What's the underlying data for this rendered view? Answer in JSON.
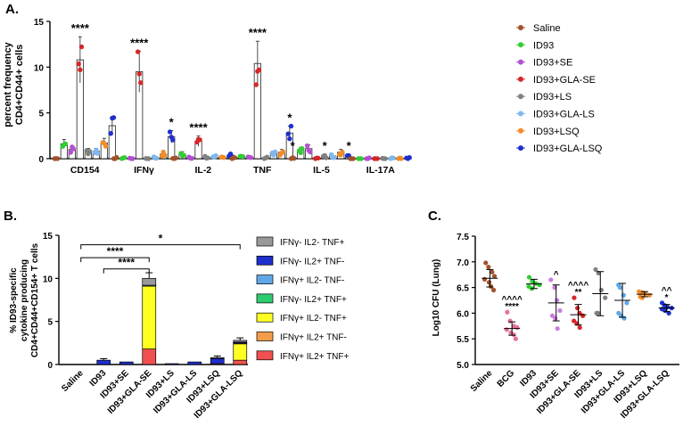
{
  "panels": {
    "a": {
      "label": "A.",
      "ylabel1": "percent frequency",
      "ylabel2": "CD4+CD44+ cells"
    },
    "b": {
      "label": "B.",
      "ylabel1": "% ID93-specific",
      "ylabel2": "cytokine producing",
      "ylabel3": "CD4+CD44+CD154+ T cells"
    },
    "c": {
      "label": "C.",
      "ylabel": "Log10 CFU (Lung)"
    }
  },
  "chart_data": [
    {
      "panel": "A",
      "type": "bar",
      "ylabel": "percent frequency CD4+CD44+ cells",
      "ylim": [
        0,
        15
      ],
      "yticks": [
        "0",
        "5",
        "10",
        "15"
      ],
      "categories": [
        "CD154",
        "IFNγ",
        "IL-2",
        "TNF",
        "IL-5",
        "IL-17A"
      ],
      "significance": [
        "****",
        "****",
        "****",
        "****",
        "*",
        ""
      ],
      "sig_extra": [
        {
          "category": "CD154",
          "series": "ID93+GLA-SE",
          "mark": "****"
        },
        {
          "category": "IFNγ",
          "series": "ID93+GLA-SE",
          "mark": "****"
        },
        {
          "category": "IFNγ",
          "series": "ID93+GLA-LSQ",
          "mark": "*"
        },
        {
          "category": "IL-2",
          "series": "ID93+GLA-SE",
          "mark": "****"
        },
        {
          "category": "TNF",
          "series": "ID93+GLA-SE",
          "mark": "****"
        },
        {
          "category": "TNF",
          "series": "ID93+GLA-LSQ",
          "mark": "*"
        },
        {
          "category": "IL-5",
          "series": "Saline",
          "mark": "*"
        },
        {
          "category": "IL-5",
          "series": "ID93+LS",
          "mark": "*"
        },
        {
          "category": "IL-5",
          "series": "ID93+GLA-LSQ",
          "mark": "*"
        }
      ],
      "series": [
        {
          "name": "Saline",
          "color": "#a0522d",
          "values": [
            0.0,
            0.0,
            0.0,
            0.0,
            0.0,
            0.0
          ]
        },
        {
          "name": "ID93",
          "color": "#33cc33",
          "values": [
            1.6,
            0.1,
            0.5,
            0.1,
            0.9,
            0.0
          ]
        },
        {
          "name": "ID93+SE",
          "color": "#b34fd1",
          "values": [
            1.0,
            0.0,
            0.2,
            0.1,
            1.1,
            0.0
          ]
        },
        {
          "name": "ID93+GLA-SE",
          "color": "#d62728",
          "values": [
            10.8,
            9.5,
            1.9,
            10.4,
            0.0,
            0.1
          ]
        },
        {
          "name": "ID93+LS",
          "color": "#808080",
          "values": [
            0.8,
            0.0,
            0.1,
            0.1,
            0.2,
            0.0
          ]
        },
        {
          "name": "ID93+GLA-LS",
          "color": "#7fb8ec",
          "values": [
            0.8,
            0.1,
            0.2,
            0.5,
            0.3,
            0.1
          ]
        },
        {
          "name": "ID93+LSQ",
          "color": "#f28c28",
          "values": [
            1.7,
            0.5,
            0.2,
            0.7,
            0.7,
            0.0
          ]
        },
        {
          "name": "ID93+GLA-LSQ",
          "color": "#1f2fcc",
          "values": [
            3.6,
            2.4,
            0.4,
            2.8,
            0.2,
            0.0
          ]
        }
      ]
    },
    {
      "panel": "B",
      "type": "bar",
      "stacked": true,
      "ylabel": "% ID93-specific cytokine producing CD4+CD44+CD154+ T cells",
      "ylim": [
        0,
        15
      ],
      "yticks": [
        "0",
        "5",
        "10",
        "15"
      ],
      "categories": [
        "Saline",
        "ID93",
        "ID93+SE",
        "ID93+GLA-SE",
        "ID93+LS",
        "ID93+GLA-LS",
        "ID93+LSQ",
        "ID93+GLA-LSQ"
      ],
      "brackets": [
        {
          "from": "Saline",
          "to": "ID93+GLA-SE",
          "mark": "****",
          "level": 12.4
        },
        {
          "from": "ID93",
          "to": "ID93+GLA-SE",
          "mark": "****",
          "level": 11.1
        },
        {
          "from": "Saline",
          "to": "ID93+GLA-LSQ",
          "mark": "*",
          "level": 13.9
        }
      ],
      "series": [
        {
          "name": "IFNγ+ IL2+ TNF+",
          "color": "#f05050",
          "values": [
            0.0,
            0.0,
            0.0,
            1.8,
            0.0,
            0.0,
            0.1,
            0.5
          ]
        },
        {
          "name": "IFNγ+ IL2+ TNF-",
          "color": "#f39c4a",
          "values": [
            0.0,
            0.0,
            0.0,
            0.0,
            0.0,
            0.0,
            0.0,
            0.0
          ]
        },
        {
          "name": "IFNγ+ IL2- TNF+",
          "color": "#ffff22",
          "values": [
            0.0,
            0.0,
            0.0,
            7.3,
            0.0,
            0.0,
            0.0,
            1.9
          ]
        },
        {
          "name": "IFNγ- IL2+ TNF+",
          "color": "#2ecc71",
          "values": [
            0.0,
            0.0,
            0.0,
            0.0,
            0.0,
            0.0,
            0.0,
            0.0
          ]
        },
        {
          "name": "IFNγ+ IL2- TNF-",
          "color": "#5fa8e8",
          "values": [
            0.0,
            0.0,
            0.0,
            0.1,
            0.0,
            0.0,
            0.0,
            0.1
          ]
        },
        {
          "name": "IFNγ- IL2+ TNF-",
          "color": "#1f2fcc",
          "values": [
            0.0,
            0.5,
            0.3,
            0.0,
            0.1,
            0.3,
            0.6,
            0.1
          ]
        },
        {
          "name": "IFNγ- IL2- TNF+",
          "color": "#999999",
          "values": [
            0.0,
            0.0,
            0.0,
            0.8,
            0.0,
            0.0,
            0.1,
            0.2
          ]
        }
      ],
      "legend_order": [
        "IFNγ- IL2- TNF+",
        "IFNγ- IL2+ TNF-",
        "IFNγ+ IL2- TNF-",
        "IFNγ- IL2+ TNF+",
        "IFNγ+ IL2- TNF+",
        "IFNγ+ IL2+ TNF-",
        "IFNγ+ IL2+ TNF+"
      ]
    },
    {
      "panel": "C",
      "type": "scatter",
      "ylabel": "Log10 CFU (Lung)",
      "ylim": [
        5.0,
        7.5
      ],
      "yticks": [
        "5.0",
        "5.5",
        "6.0",
        "6.5",
        "7.0",
        "7.5"
      ],
      "categories": [
        "Saline",
        "BCG",
        "ID93",
        "ID93+SE",
        "ID93+GLA-SE",
        "ID93+LS",
        "ID93+GLA-LS",
        "ID93+LSQ",
        "ID93+GLA-LSQ"
      ],
      "groups": [
        {
          "name": "Saline",
          "color": "#a0522d",
          "mean": 6.68,
          "sd": 0.17,
          "points": [
            6.98,
            6.9,
            6.8,
            6.72,
            6.66,
            6.6,
            6.52,
            6.45
          ],
          "marks": []
        },
        {
          "name": "BCG",
          "color": "#e6739a",
          "mean": 5.7,
          "sd": 0.13,
          "points": [
            6.02,
            5.85,
            5.75,
            5.72,
            5.68,
            5.62,
            5.58,
            5.5
          ],
          "marks": [
            "^^^^",
            "****"
          ]
        },
        {
          "name": "ID93",
          "color": "#33cc33",
          "mean": 6.57,
          "sd": 0.09,
          "points": [
            6.7,
            6.62,
            6.58,
            6.55,
            6.52,
            6.48
          ],
          "marks": []
        },
        {
          "name": "ID93+SE",
          "color": "#c97ee0",
          "mean": 6.2,
          "sd": 0.35,
          "points": [
            6.65,
            6.5,
            6.25,
            6.05,
            5.95,
            5.9,
            5.7
          ],
          "marks": [
            "^"
          ]
        },
        {
          "name": "ID93+GLA-SE",
          "color": "#d62728",
          "mean": 5.97,
          "sd": 0.2,
          "points": [
            6.3,
            6.1,
            6.0,
            5.95,
            5.85,
            5.8,
            5.72
          ],
          "marks": [
            "^^^^",
            "**"
          ]
        },
        {
          "name": "ID93+LS",
          "color": "#808080",
          "mean": 6.38,
          "sd": 0.43,
          "points": [
            6.85,
            6.78,
            6.45,
            6.3,
            6.0,
            6.0
          ],
          "marks": []
        },
        {
          "name": "ID93+GLA-LS",
          "color": "#5fa8e8",
          "mean": 6.25,
          "sd": 0.33,
          "points": [
            6.55,
            6.5,
            6.35,
            6.2,
            6.0,
            5.95,
            5.9
          ],
          "marks": []
        },
        {
          "name": "ID93+LSQ",
          "color": "#f28c28",
          "mean": 6.37,
          "sd": 0.05,
          "points": [
            6.42,
            6.4,
            6.38,
            6.35,
            6.32,
            6.3
          ],
          "marks": []
        },
        {
          "name": "ID93+GLA-LSQ",
          "color": "#1f2fcc",
          "mean": 6.1,
          "sd": 0.07,
          "points": [
            6.2,
            6.15,
            6.12,
            6.1,
            6.08,
            6.05,
            6.0
          ],
          "marks": [
            "^^",
            "*"
          ]
        }
      ]
    }
  ]
}
